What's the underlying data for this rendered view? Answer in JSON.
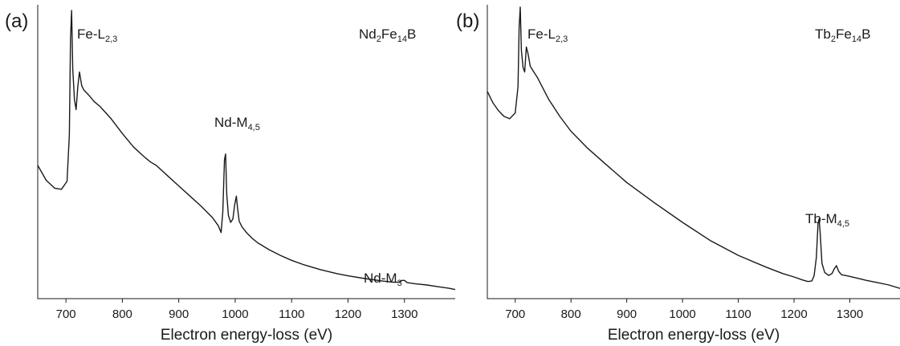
{
  "chart_data": [
    {
      "type": "line",
      "panel_label": "(a)",
      "compound": {
        "base": "Nd",
        "sub1": "2",
        "mid": "Fe",
        "sub2": "14",
        "tail": "B"
      },
      "xlabel": "Electron energy-loss (eV)",
      "xlim": [
        650,
        1390
      ],
      "xticks": [
        700,
        800,
        900,
        1000,
        1100,
        1200,
        1300
      ],
      "yaxis_ticks_shown": false,
      "annotations": [
        {
          "main": "Fe-L",
          "sub": "2,3",
          "x": 712
        },
        {
          "main": "Nd-M",
          "sub": "4,5",
          "x": 985
        },
        {
          "main": "Nd-M",
          "sub": "3",
          "x": 1298
        }
      ],
      "series": [
        {
          "color": "#1a1a1a",
          "x": [
            650,
            665,
            680,
            692,
            702,
            706,
            708,
            710,
            712,
            715,
            718,
            721,
            724,
            728,
            732,
            740,
            750,
            760,
            780,
            800,
            820,
            840,
            850,
            860,
            880,
            900,
            920,
            940,
            960,
            970,
            975,
            978,
            981,
            983,
            985,
            988,
            992,
            996,
            999,
            1002,
            1004,
            1007,
            1012,
            1020,
            1030,
            1040,
            1060,
            1080,
            1100,
            1120,
            1150,
            1180,
            1200,
            1230,
            1260,
            1280,
            1290,
            1296,
            1300,
            1305,
            1320,
            1340,
            1360,
            1380,
            1390
          ],
          "y": [
            5.25,
            4.6,
            4.25,
            4.2,
            4.55,
            6.6,
            10.8,
            12.05,
            9.5,
            8.15,
            7.7,
            8.7,
            9.35,
            8.75,
            8.55,
            8.35,
            8.05,
            7.85,
            7.3,
            6.65,
            6.05,
            5.6,
            5.4,
            5.25,
            4.8,
            4.35,
            3.9,
            3.45,
            2.95,
            2.6,
            2.3,
            3.2,
            5.5,
            5.75,
            4.0,
            3.05,
            2.75,
            2.9,
            3.5,
            3.9,
            3.4,
            2.8,
            2.55,
            2.3,
            2.05,
            1.85,
            1.55,
            1.3,
            1.08,
            0.9,
            0.68,
            0.5,
            0.4,
            0.28,
            0.18,
            0.12,
            0.12,
            0.2,
            0.2,
            0.1,
            0.05,
            0.0,
            -0.08,
            -0.15,
            -0.2
          ]
        }
      ]
    },
    {
      "type": "line",
      "panel_label": "(b)",
      "compound": {
        "base": "Tb",
        "sub1": "2",
        "mid": "Fe",
        "sub2": "14",
        "tail": "B"
      },
      "xlabel": "Electron energy-loss (eV)",
      "xlim": [
        650,
        1390
      ],
      "xticks": [
        700,
        800,
        900,
        1000,
        1100,
        1200,
        1300
      ],
      "yaxis_ticks_shown": false,
      "annotations": [
        {
          "main": "Fe-L",
          "sub": "2,3",
          "x": 712
        },
        {
          "main": "Tb-M",
          "sub": "4,5",
          "x": 1246
        }
      ],
      "series": [
        {
          "color": "#1a1a1a",
          "x": [
            650,
            660,
            670,
            680,
            690,
            700,
            705,
            707,
            709,
            711,
            714,
            717,
            720,
            723,
            727,
            732,
            740,
            760,
            780,
            800,
            830,
            860,
            900,
            950,
            1000,
            1050,
            1100,
            1150,
            1180,
            1200,
            1215,
            1225,
            1232,
            1236,
            1240,
            1243,
            1245,
            1247,
            1250,
            1255,
            1262,
            1268,
            1272,
            1276,
            1280,
            1285,
            1295,
            1310,
            1330,
            1350,
            1370,
            1390
          ],
          "y": [
            8.5,
            8.0,
            7.65,
            7.4,
            7.3,
            7.55,
            8.7,
            11.3,
            12.2,
            10.3,
            9.55,
            9.35,
            10.45,
            10.15,
            9.6,
            9.4,
            9.1,
            8.15,
            7.4,
            6.75,
            6.0,
            5.35,
            4.5,
            3.6,
            2.75,
            1.95,
            1.3,
            0.78,
            0.5,
            0.35,
            0.22,
            0.15,
            0.18,
            0.4,
            1.2,
            2.7,
            2.9,
            2.2,
            0.95,
            0.55,
            0.42,
            0.5,
            0.7,
            0.85,
            0.6,
            0.45,
            0.4,
            0.32,
            0.2,
            0.1,
            0.0,
            -0.15
          ]
        }
      ]
    }
  ]
}
